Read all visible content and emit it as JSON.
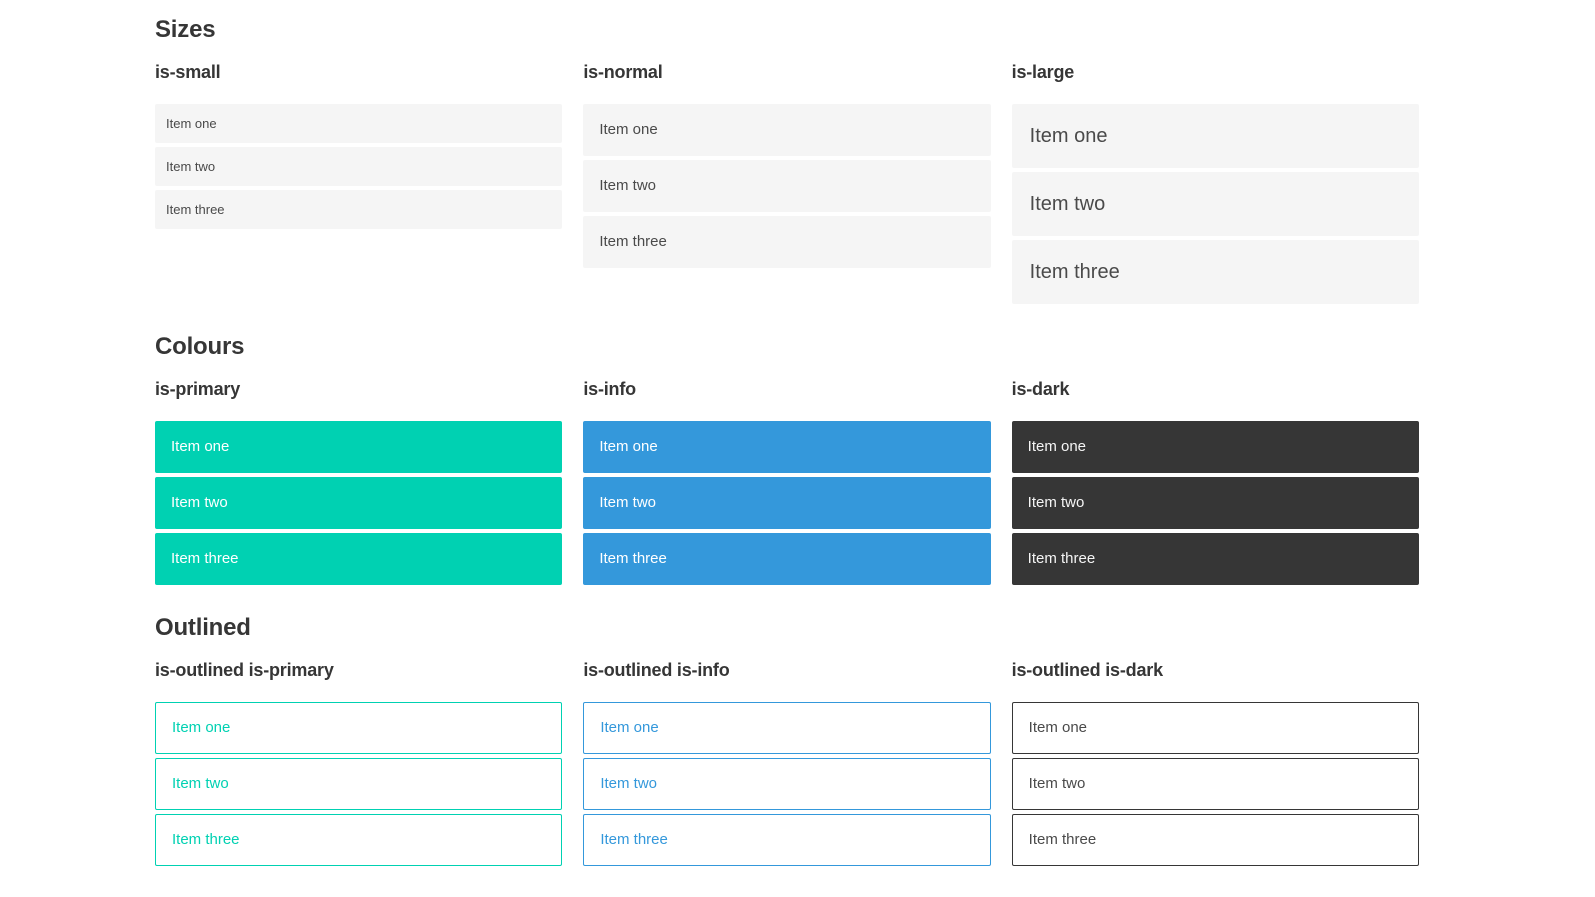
{
  "colors": {
    "primary": "#00d1b2",
    "info": "#3498db",
    "dark": "#363636",
    "item_background": "#f5f5f5",
    "heading_text": "#363636",
    "item_text": "#4a4a4a",
    "page_background": "#ffffff"
  },
  "sections": [
    {
      "title": "Sizes",
      "groups": [
        {
          "label": "is-small",
          "items": [
            "Item one",
            "Item two",
            "Item three"
          ]
        },
        {
          "label": "is-normal",
          "items": [
            "Item one",
            "Item two",
            "Item three"
          ]
        },
        {
          "label": "is-large",
          "items": [
            "Item one",
            "Item two",
            "Item three"
          ]
        }
      ]
    },
    {
      "title": "Colours",
      "groups": [
        {
          "label": "is-primary",
          "items": [
            "Item one",
            "Item two",
            "Item three"
          ]
        },
        {
          "label": "is-info",
          "items": [
            "Item one",
            "Item two",
            "Item three"
          ]
        },
        {
          "label": "is-dark",
          "items": [
            "Item one",
            "Item two",
            "Item three"
          ]
        }
      ]
    },
    {
      "title": "Outlined",
      "groups": [
        {
          "label": "is-outlined is-primary",
          "items": [
            "Item one",
            "Item two",
            "Item three"
          ]
        },
        {
          "label": "is-outlined is-info",
          "items": [
            "Item one",
            "Item two",
            "Item three"
          ]
        },
        {
          "label": "is-outlined is-dark",
          "items": [
            "Item one",
            "Item two",
            "Item three"
          ]
        }
      ]
    }
  ]
}
